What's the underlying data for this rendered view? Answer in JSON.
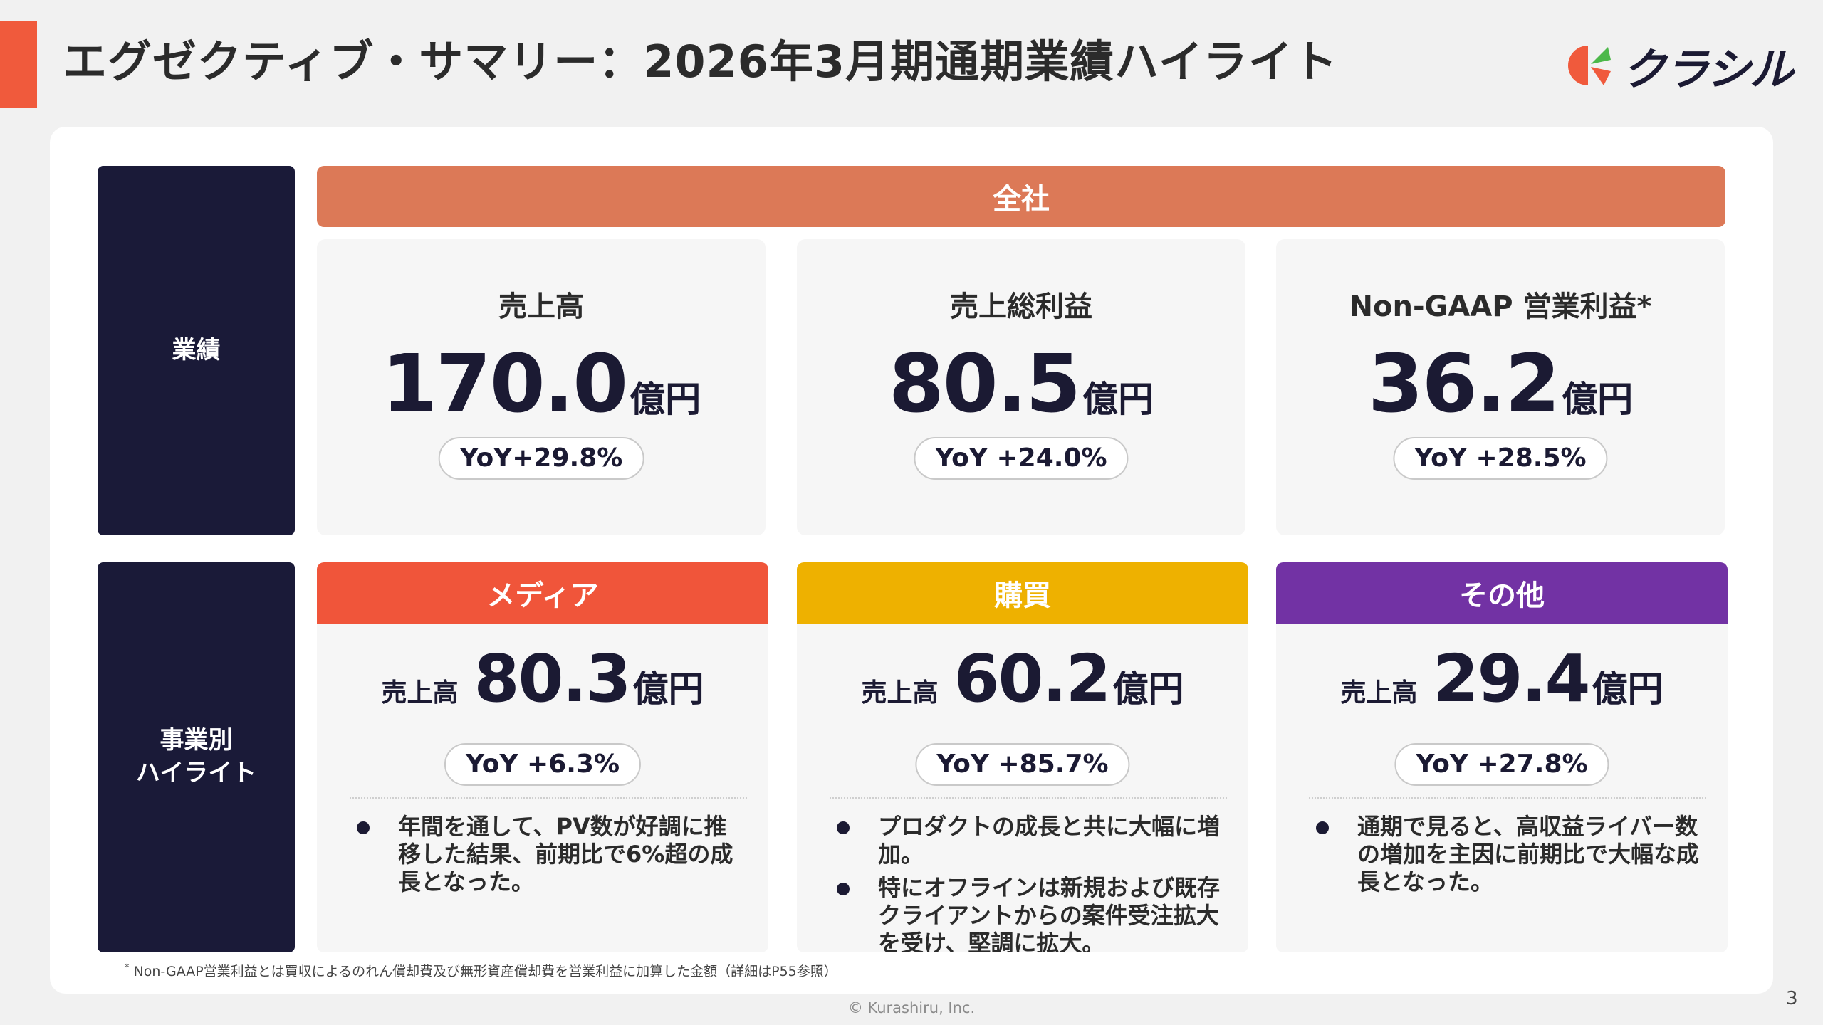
{
  "header": {
    "title": "エグゼクティブ・サマリー：2026年3月期通期業績ハイライト",
    "logo_text": "クラシル",
    "accent_color": "#f05a3c"
  },
  "rows": {
    "performance_label": "業績",
    "segment_label_line1": "事業別",
    "segment_label_line2": "ハイライト"
  },
  "company": {
    "label": "全社",
    "color": "#dc7957",
    "metrics": [
      {
        "name": "売上高",
        "value": "170.0",
        "unit": "億円",
        "yoy": "YoY+29.8%"
      },
      {
        "name": "売上総利益",
        "value": "80.5",
        "unit": "億円",
        "yoy": "YoY +24.0%"
      },
      {
        "name": "Non-GAAP 営業利益*",
        "value": "36.2",
        "unit": "億円",
        "yoy": "YoY +28.5%"
      }
    ]
  },
  "segments": [
    {
      "name": "メディア",
      "color": "#f0553a",
      "sales_label": "売上高",
      "value": "80.3",
      "unit": "億円",
      "yoy": "YoY +6.3%",
      "bullets": [
        "年間を通して、PV数が好調に推移した結果、前期比で6%超の成長となった。"
      ]
    },
    {
      "name": "購買",
      "color": "#eeb100",
      "sales_label": "売上高",
      "value": "60.2",
      "unit": "億円",
      "yoy": "YoY +85.7%",
      "bullets": [
        "プロダクトの成長と共に大幅に増加。",
        "特にオフラインは新規および既存クライアントからの案件受注拡大を受け、堅調に拡大。"
      ]
    },
    {
      "name": "その他",
      "color": "#7232a4",
      "sales_label": "売上高",
      "value": "29.4",
      "unit": "億円",
      "yoy": "YoY +27.8%",
      "bullets": [
        "通期で見ると、高収益ライバー数の増加を主因に前期比で大幅な成長となった。"
      ]
    }
  ],
  "footnote": {
    "mark": "*",
    "text": "Non-GAAP営業利益とは買収によるのれん償却費及び無形資産償却費を営業利益に加算した金額（詳細はP55参照）"
  },
  "footer": {
    "copyright": "© Kurashiru, Inc.",
    "page_number": "3"
  },
  "icons": {
    "logo": "kurashiru-logo-icon"
  }
}
